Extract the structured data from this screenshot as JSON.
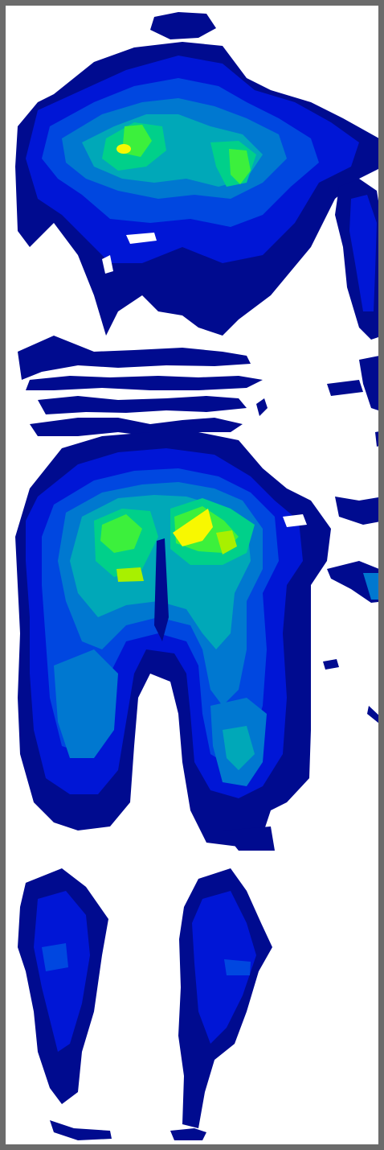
{
  "figure": {
    "kind": "body pressure / heat map contour",
    "frame_color": "#6b6b6b",
    "background": "#ffffff",
    "palette": {
      "level_1": "#000b8f",
      "level_2": "#0016d6",
      "level_3": "#0047e0",
      "level_4": "#0078d0",
      "level_5": "#00a8b8",
      "level_6": "#00d08a",
      "level_7": "#3cf03c",
      "level_8": "#a8f000",
      "level_9": "#f8f800"
    },
    "regions": [
      "head-shoulders",
      "neck-gap",
      "torso-pelvis",
      "thighs",
      "lower-legs",
      "feet"
    ]
  }
}
